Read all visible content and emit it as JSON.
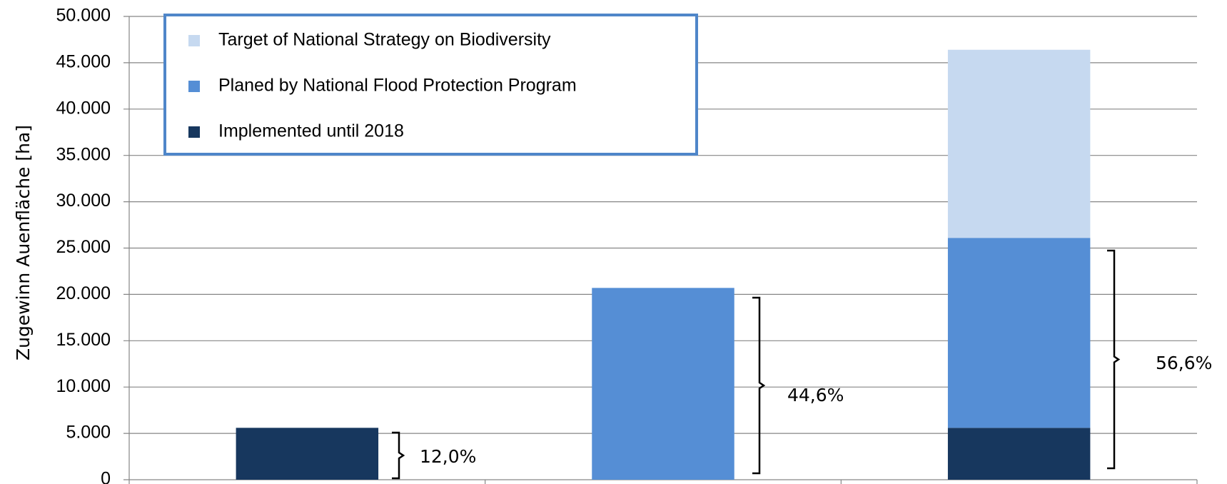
{
  "chart_data": {
    "type": "stacked_bar",
    "y_label": "Zugewinn Auenfläche [ha]",
    "categories": [
      null,
      null,
      null
    ],
    "series": [
      {
        "name": "Implemented until 2018",
        "color": "#17375e",
        "values": [
          5600,
          0,
          5600
        ]
      },
      {
        "name": "Planed by National Flood Protection Program",
        "color": "#558ed5",
        "values": [
          0,
          20700,
          20500
        ]
      },
      {
        "name": "Target of National Strategy on Biodiversity",
        "color": "#c6d9f0",
        "values": [
          0,
          0,
          20300
        ]
      }
    ],
    "ylim": [
      0,
      50000
    ],
    "yticks": [
      0,
      {
        "value": 5000,
        "label": "5.000"
      },
      {
        "value": 10000,
        "label": "10.000"
      },
      {
        "value": 15000,
        "label": "15.000"
      },
      {
        "value": 20000,
        "label": "20.000"
      },
      {
        "value": 25000,
        "label": "25.000"
      },
      {
        "value": 30000,
        "label": "30.000"
      },
      {
        "value": 35000,
        "label": "35.000"
      },
      {
        "value": 40000,
        "label": "40.000"
      },
      {
        "value": 45000,
        "label": "45.000"
      },
      {
        "value": 50000,
        "label": "50.000"
      }
    ],
    "grid": true,
    "legend": "upper left",
    "annotations": [
      "12,0%",
      "44,6%",
      "56,6%"
    ]
  }
}
